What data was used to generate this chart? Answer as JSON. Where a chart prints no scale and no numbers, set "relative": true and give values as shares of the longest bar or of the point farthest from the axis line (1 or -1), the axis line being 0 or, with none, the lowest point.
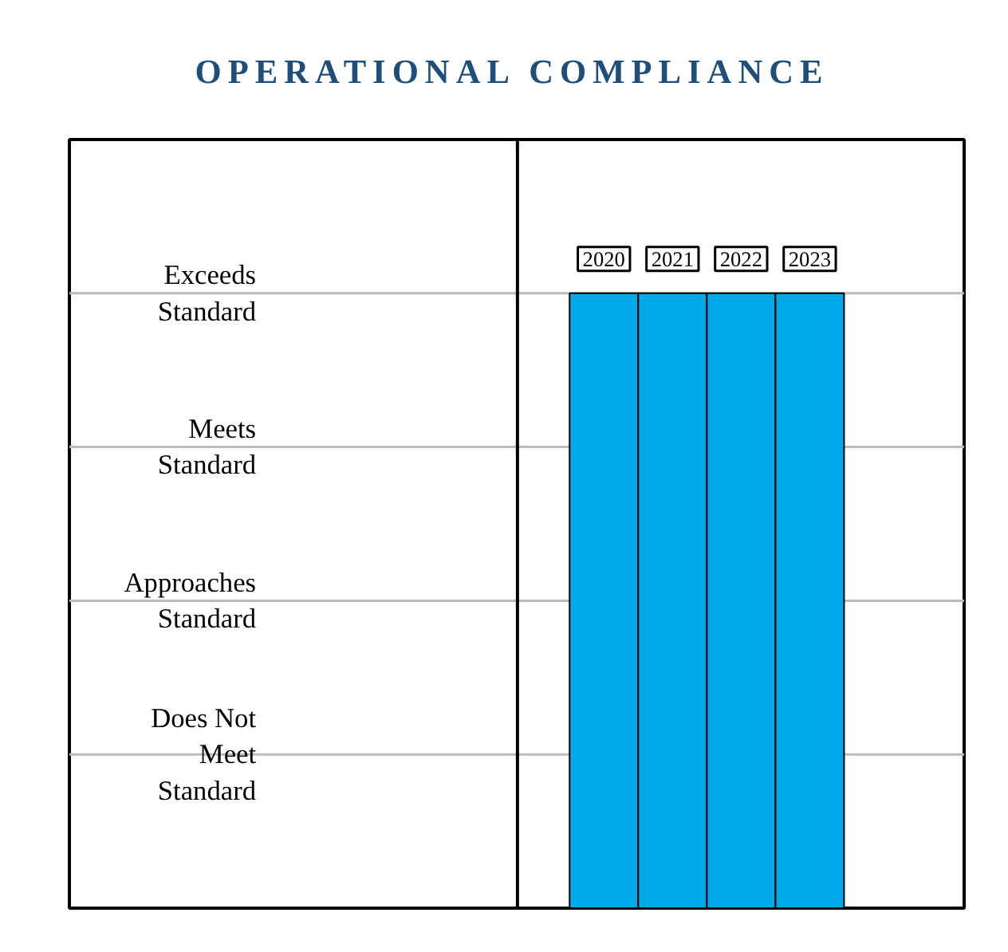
{
  "chart_data": {
    "type": "bar",
    "title": "OPERATIONAL COMPLIANCE",
    "categories": [
      "2020",
      "2021",
      "2022",
      "2023"
    ],
    "values": [
      1,
      1,
      1,
      1
    ],
    "relative": true,
    "color": "#00a9e8",
    "ref_lines": [
      {
        "axis": "y",
        "value": 0.25,
        "label": "Does Not Meet Standard",
        "color": "#bbbbbb"
      },
      {
        "axis": "y",
        "value": 0.5,
        "label": "Approaches Standard",
        "color": "#bbbbbb"
      },
      {
        "axis": "y",
        "value": 0.75,
        "label": "Meets Standard",
        "color": "#bbbbbb"
      },
      {
        "axis": "y",
        "value": 1,
        "label": "Exceeds Standard",
        "color": "#bbbbbb"
      }
    ]
  }
}
